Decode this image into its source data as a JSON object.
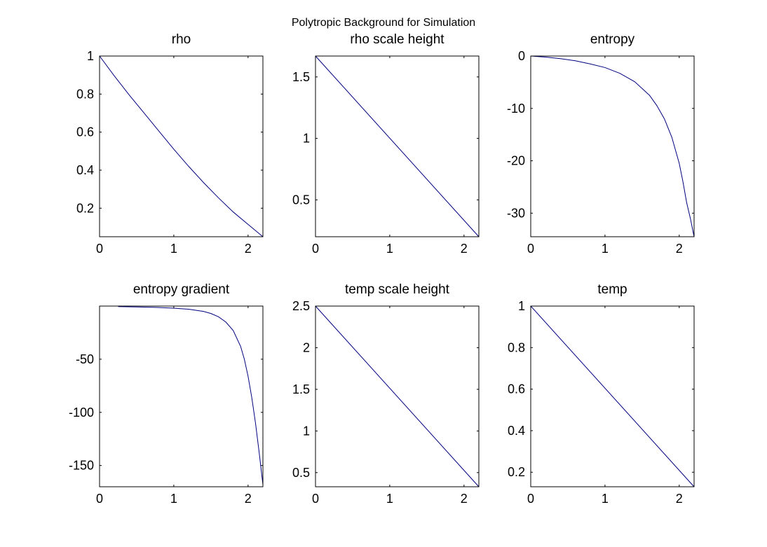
{
  "figure": {
    "suptitle": "Polytropic Background for Simulation",
    "line_color": "#00007f",
    "background": "#ffffff"
  },
  "chart_data": [
    {
      "type": "line",
      "title": "rho",
      "xlim": [
        0,
        2.2
      ],
      "ylim": [
        0.05,
        1
      ],
      "xticks": [
        0,
        1,
        2
      ],
      "xtick_labels": [
        "0",
        "1",
        "2"
      ],
      "yticks": [
        0.2,
        0.4,
        0.6,
        0.8,
        1
      ],
      "ytick_labels": [
        "0.2",
        "0.4",
        "0.6",
        "0.8",
        "1"
      ],
      "grid": false,
      "x": [
        0,
        0.2,
        0.4,
        0.6,
        0.8,
        1.0,
        1.2,
        1.4,
        1.6,
        1.8,
        2.0,
        2.2
      ],
      "y": [
        1.0,
        0.895,
        0.795,
        0.7,
        0.605,
        0.51,
        0.42,
        0.335,
        0.255,
        0.18,
        0.115,
        0.05
      ]
    },
    {
      "type": "line",
      "title": "rho scale height",
      "xlim": [
        0,
        2.2
      ],
      "ylim": [
        0.2,
        1.67
      ],
      "xticks": [
        0,
        1,
        2
      ],
      "xtick_labels": [
        "0",
        "1",
        "2"
      ],
      "yticks": [
        0.5,
        1,
        1.5
      ],
      "ytick_labels": [
        "0.5",
        "1",
        "1.5"
      ],
      "grid": false,
      "x": [
        0,
        2.2
      ],
      "y": [
        1.67,
        0.2
      ]
    },
    {
      "type": "line",
      "title": "entropy",
      "xlim": [
        0,
        2.2
      ],
      "ylim": [
        -34.5,
        0
      ],
      "xticks": [
        0,
        1,
        2
      ],
      "xtick_labels": [
        "0",
        "1",
        "2"
      ],
      "yticks": [
        -30,
        -20,
        -10,
        0
      ],
      "ytick_labels": [
        "-30",
        "-20",
        "-10",
        "0"
      ],
      "grid": false,
      "x": [
        0,
        0.2,
        0.4,
        0.6,
        0.8,
        1.0,
        1.2,
        1.4,
        1.6,
        1.7,
        1.8,
        1.9,
        2.0,
        2.05,
        2.1,
        2.15,
        2.2
      ],
      "y": [
        0,
        -0.2,
        -0.5,
        -0.9,
        -1.5,
        -2.2,
        -3.3,
        -4.9,
        -7.5,
        -9.5,
        -12.0,
        -15.5,
        -20.5,
        -24,
        -28,
        -31,
        -34.5
      ]
    },
    {
      "type": "line",
      "title": "entropy gradient",
      "xlim": [
        0,
        2.2
      ],
      "ylim": [
        -170,
        0
      ],
      "xticks": [
        0,
        1,
        2
      ],
      "xtick_labels": [
        "0",
        "1",
        "2"
      ],
      "yticks": [
        -150,
        -100,
        -50
      ],
      "ytick_labels": [
        "-150",
        "-100",
        "-50"
      ],
      "grid": false,
      "x": [
        0.25,
        0.5,
        0.75,
        1.0,
        1.2,
        1.4,
        1.5,
        1.6,
        1.7,
        1.8,
        1.9,
        1.95,
        2.0,
        2.05,
        2.1,
        2.15,
        2.2
      ],
      "y": [
        -0.5,
        -0.8,
        -1.2,
        -2.0,
        -3.0,
        -5.0,
        -7.0,
        -10.0,
        -15.0,
        -23.0,
        -38.0,
        -50.0,
        -66.0,
        -86.0,
        -110.0,
        -138.0,
        -168.0
      ]
    },
    {
      "type": "line",
      "title": "temp scale height",
      "xlim": [
        0,
        2.2
      ],
      "ylim": [
        0.33,
        2.5
      ],
      "xticks": [
        0,
        1,
        2
      ],
      "xtick_labels": [
        "0",
        "1",
        "2"
      ],
      "yticks": [
        0.5,
        1,
        1.5,
        2,
        2.5
      ],
      "ytick_labels": [
        "0.5",
        "1",
        "1.5",
        "2",
        "2.5"
      ],
      "grid": false,
      "x": [
        0,
        2.2
      ],
      "y": [
        2.5,
        0.33
      ]
    },
    {
      "type": "line",
      "title": "temp",
      "xlim": [
        0,
        2.2
      ],
      "ylim": [
        0.13,
        1
      ],
      "xticks": [
        0,
        1,
        2
      ],
      "xtick_labels": [
        "0",
        "1",
        "2"
      ],
      "yticks": [
        0.2,
        0.4,
        0.6,
        0.8,
        1
      ],
      "ytick_labels": [
        "0.2",
        "0.4",
        "0.6",
        "0.8",
        "1"
      ],
      "grid": false,
      "x": [
        0,
        2.2
      ],
      "y": [
        1.0,
        0.13
      ]
    }
  ]
}
